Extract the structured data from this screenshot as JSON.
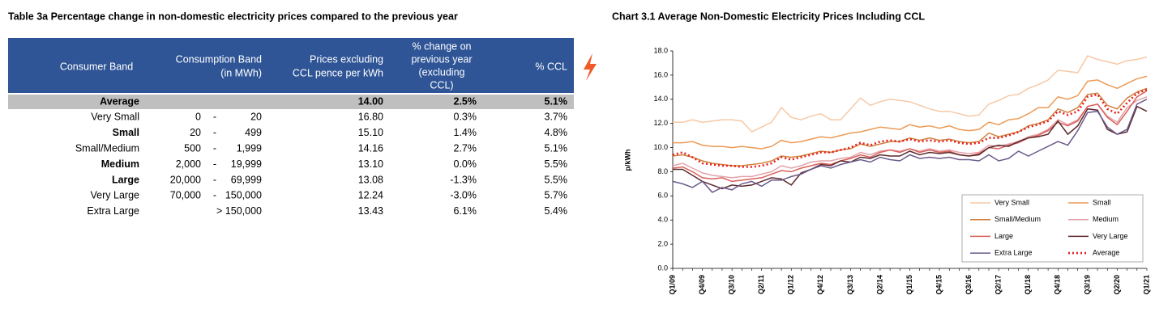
{
  "table": {
    "title": "Table 3a Percentage change in non-domestic electricity prices compared to the previous year",
    "header": {
      "band": "Consumer Band",
      "consumption": [
        "Consumption Band",
        "(in MWh)"
      ],
      "price": [
        "Prices excluding",
        "CCL pence per kWh"
      ],
      "change": [
        "% change on",
        "previous year",
        "(excluding",
        "CCL)"
      ],
      "ccl": "% CCL"
    },
    "rows": [
      {
        "band": "Average",
        "from": null,
        "sep": null,
        "to": null,
        "price": "14.00",
        "change": "2.5%",
        "ccl": "5.1%"
      },
      {
        "band": "Very Small",
        "from": "0",
        "sep": "-",
        "to": "20",
        "price": "16.80",
        "change": "0.3%",
        "ccl": "3.7%"
      },
      {
        "band": "Small",
        "from": "20",
        "sep": "-",
        "to": "499",
        "price": "15.10",
        "change": "1.4%",
        "ccl": "4.8%"
      },
      {
        "band": "Small/Medium",
        "from": "500",
        "sep": "-",
        "to": "1,999",
        "price": "14.16",
        "change": "2.7%",
        "ccl": "5.1%"
      },
      {
        "band": "Medium",
        "from": "2,000",
        "sep": "-",
        "to": "19,999",
        "price": "13.10",
        "change": "0.0%",
        "ccl": "5.5%"
      },
      {
        "band": "Large",
        "from": "20,000",
        "sep": "-",
        "to": "69,999",
        "price": "13.08",
        "change": "-1.3%",
        "ccl": "5.5%"
      },
      {
        "band": "Very Large",
        "from": "70,000",
        "sep": "-",
        "to": "150,000",
        "price": "12.24",
        "change": "-3.0%",
        "ccl": "5.7%"
      },
      {
        "band": "Extra Large",
        "from": null,
        "sep": null,
        "to": "> 150,000",
        "price": "13.43",
        "change": "6.1%",
        "ccl": "5.4%"
      }
    ]
  },
  "chart_data": {
    "type": "line",
    "title": "Chart 3.1 Average Non-Domestic Electricity Prices Including CCL",
    "ylabel": "p/kWh",
    "categories": [
      "Q1/09",
      null,
      null,
      "Q4/09",
      null,
      null,
      "Q3/10",
      null,
      null,
      "Q2/11",
      null,
      null,
      "Q1/12",
      null,
      null,
      "Q4/12",
      null,
      null,
      "Q3/13",
      null,
      null,
      "Q2/14",
      null,
      null,
      "Q1/15",
      null,
      null,
      "Q4/15",
      null,
      null,
      "Q3/16",
      null,
      null,
      "Q2/17",
      null,
      null,
      "Q1/18",
      null,
      null,
      "Q4/18",
      null,
      null,
      "Q3/19",
      null,
      null,
      "Q2/20",
      null,
      null,
      "Q1/21"
    ],
    "ylim": [
      0,
      18
    ],
    "yticks": [
      {
        "value": 0,
        "label": "0.0"
      },
      {
        "value": 2,
        "label": "2.0"
      },
      {
        "value": 4,
        "label": "4.0"
      },
      {
        "value": 6,
        "label": "6.0"
      },
      {
        "value": 8,
        "label": "8.0"
      },
      {
        "value": 10,
        "label": "10.0"
      },
      {
        "value": 12,
        "label": "12.0"
      },
      {
        "value": 14,
        "label": "14.0"
      },
      {
        "value": 16,
        "label": "16.0"
      },
      {
        "value": 18,
        "label": "18.0"
      }
    ],
    "grid": false,
    "legend": "bottom-right",
    "series": [
      {
        "name": "Very Small",
        "color": "#f6c9a6",
        "values": [
          12.1,
          12.1,
          12.3,
          12.1,
          12.2,
          12.3,
          12.3,
          12.2,
          11.3,
          11.7,
          12.1,
          13.3,
          12.5,
          12.3,
          12.6,
          12.8,
          12.3,
          12.3,
          13.2,
          14.1,
          13.5,
          13.8,
          14.0,
          13.9,
          13.8,
          13.5,
          13.2,
          13.0,
          13.0,
          12.8,
          12.6,
          12.7,
          13.6,
          13.9,
          14.3,
          14.4,
          14.9,
          15.2,
          15.6,
          16.4,
          16.3,
          16.2,
          17.6,
          17.3,
          17.1,
          16.9,
          17.2,
          17.3,
          17.5
        ]
      },
      {
        "name": "Small",
        "color": "#ec9a55",
        "values": [
          10.4,
          10.4,
          10.5,
          10.2,
          10.1,
          10.1,
          10.0,
          10.1,
          10.0,
          9.9,
          10.1,
          10.6,
          10.4,
          10.5,
          10.7,
          10.9,
          10.8,
          11.0,
          11.2,
          11.3,
          11.5,
          11.7,
          11.6,
          11.5,
          11.9,
          11.7,
          11.8,
          11.6,
          11.8,
          11.5,
          11.4,
          11.5,
          12.1,
          11.9,
          12.3,
          12.4,
          12.8,
          13.3,
          13.3,
          14.2,
          14.0,
          14.3,
          15.5,
          15.6,
          15.2,
          14.9,
          15.3,
          15.7,
          15.9
        ]
      },
      {
        "name": "Small/Medium",
        "color": "#d4813d",
        "values": [
          9.3,
          9.4,
          9.2,
          8.9,
          8.7,
          8.6,
          8.5,
          8.5,
          8.6,
          8.7,
          8.9,
          9.3,
          9.2,
          9.3,
          9.5,
          9.7,
          9.6,
          9.8,
          9.9,
          10.3,
          10.1,
          10.3,
          10.5,
          10.5,
          10.8,
          10.6,
          10.8,
          10.6,
          10.7,
          10.5,
          10.4,
          10.5,
          11.2,
          10.9,
          11.1,
          11.3,
          11.8,
          12.0,
          12.3,
          13.2,
          12.9,
          13.3,
          14.4,
          14.5,
          13.5,
          13.2,
          14.1,
          14.6,
          14.9
        ]
      },
      {
        "name": "Medium",
        "color": "#e3a3ab",
        "values": [
          8.5,
          8.7,
          8.3,
          7.9,
          7.7,
          7.6,
          7.5,
          7.6,
          7.6,
          7.8,
          8.0,
          8.5,
          8.3,
          8.5,
          8.8,
          8.9,
          8.9,
          9.1,
          9.2,
          9.6,
          9.4,
          9.7,
          9.8,
          9.7,
          9.9,
          9.7,
          9.9,
          9.7,
          9.8,
          9.6,
          9.5,
          9.6,
          10.2,
          10.1,
          10.3,
          10.5,
          10.9,
          11.1,
          11.5,
          12.3,
          11.9,
          12.3,
          13.4,
          13.6,
          12.6,
          12.1,
          13.3,
          13.9,
          14.2
        ]
      },
      {
        "name": "Large",
        "color": "#d9605a",
        "values": [
          8.3,
          8.4,
          8.0,
          7.5,
          7.4,
          7.5,
          7.2,
          7.3,
          7.4,
          7.5,
          7.8,
          8.1,
          8.0,
          8.3,
          8.5,
          8.7,
          8.6,
          8.9,
          9.1,
          9.4,
          9.2,
          9.6,
          9.8,
          9.6,
          9.9,
          9.6,
          9.8,
          9.6,
          9.7,
          9.4,
          9.3,
          9.5,
          10.0,
          9.9,
          10.2,
          10.4,
          10.8,
          11.0,
          11.4,
          12.1,
          11.8,
          12.2,
          13.4,
          13.6,
          12.5,
          11.9,
          13.0,
          14.2,
          14.7
        ]
      },
      {
        "name": "Very Large",
        "color": "#5c2a2e",
        "values": [
          8.2,
          8.2,
          7.7,
          7.2,
          6.9,
          6.6,
          6.9,
          6.8,
          6.9,
          7.2,
          7.5,
          7.4,
          6.9,
          7.9,
          8.2,
          8.6,
          8.5,
          8.9,
          8.8,
          9.2,
          9.1,
          9.4,
          9.3,
          9.3,
          9.7,
          9.4,
          9.6,
          9.5,
          9.6,
          9.4,
          9.3,
          9.4,
          10.0,
          10.2,
          10.1,
          10.5,
          10.8,
          10.9,
          11.1,
          12.2,
          11.1,
          11.8,
          13.2,
          13.1,
          11.5,
          11.1,
          11.3,
          13.4,
          13.0
        ]
      },
      {
        "name": "Extra Large",
        "color": "#6b5b8c",
        "values": [
          7.2,
          7.0,
          6.7,
          7.2,
          6.3,
          6.7,
          6.5,
          7.0,
          7.2,
          6.8,
          7.3,
          7.3,
          7.6,
          7.8,
          8.2,
          8.5,
          8.3,
          8.6,
          8.8,
          9.0,
          8.8,
          9.2,
          9.0,
          8.9,
          9.4,
          9.1,
          9.2,
          9.1,
          9.2,
          9.0,
          9.0,
          8.9,
          9.4,
          8.9,
          9.1,
          9.7,
          9.3,
          9.7,
          10.1,
          10.5,
          10.2,
          11.4,
          12.9,
          13.0,
          11.7,
          11.1,
          11.5,
          13.6,
          14.0
        ]
      },
      {
        "name": "Average",
        "color": "#e0201e",
        "dashed": true,
        "values": [
          9.4,
          9.6,
          9.2,
          8.7,
          8.6,
          8.5,
          8.5,
          8.4,
          8.4,
          8.5,
          8.7,
          9.2,
          9.0,
          9.2,
          9.4,
          9.6,
          9.6,
          9.8,
          10.0,
          10.4,
          10.2,
          10.5,
          10.6,
          10.5,
          10.7,
          10.5,
          10.6,
          10.5,
          10.6,
          10.4,
          10.3,
          10.4,
          10.8,
          10.8,
          11.0,
          11.3,
          11.7,
          11.9,
          12.2,
          13.0,
          12.7,
          13.0,
          14.2,
          14.4,
          13.2,
          12.8,
          13.7,
          14.5,
          14.8
        ]
      }
    ]
  }
}
